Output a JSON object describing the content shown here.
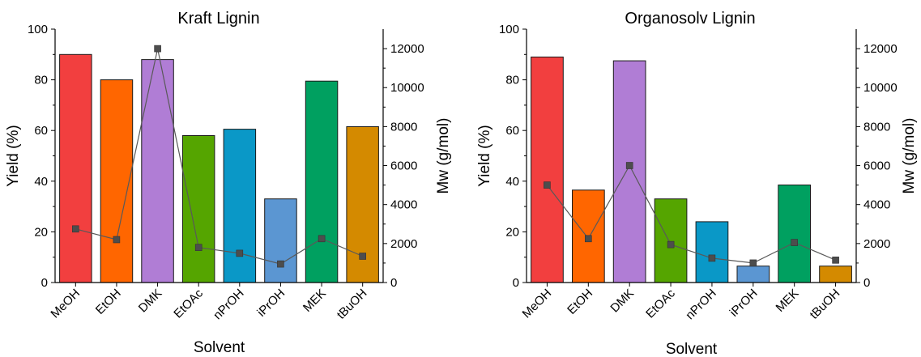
{
  "chart_data": [
    {
      "type": "bar",
      "title": "Kraft Lignin",
      "xlabel": "Solvent",
      "ylabel": "Yield (%)",
      "y2label": "Mw (g/mol)",
      "categories": [
        "MeOH",
        "EtOH",
        "DMK",
        "EtOAc",
        "nPrOH",
        "iPrOH",
        "MEK",
        "tBuOH"
      ],
      "ylim": [
        0,
        100
      ],
      "yticks": [
        "0",
        "20",
        "40",
        "60",
        "80",
        "100"
      ],
      "y2lim": [
        0,
        13000
      ],
      "y2ticks": [
        "0",
        "2000",
        "4000",
        "6000",
        "8000",
        "10000",
        "12000"
      ],
      "series": [
        {
          "type": "bar",
          "values": [
            90,
            80,
            88,
            58,
            60.5,
            33,
            79.5,
            61.5
          ]
        },
        {
          "type": "line",
          "axis": "secondary",
          "values": [
            2750,
            2200,
            12000,
            1800,
            1500,
            950,
            2250,
            1350
          ]
        }
      ],
      "bar_colors": [
        "#f23f3f",
        "#ff6600",
        "#b07dd5",
        "#55a500",
        "#0a98c7",
        "#5b96d2",
        "#00a060",
        "#d48a00"
      ]
    },
    {
      "type": "bar",
      "title": "Organosolv Lignin",
      "xlabel": "Solvent",
      "ylabel": "Yield (%)",
      "y2label": "Mw (g/mol)",
      "categories": [
        "MeOH",
        "EtOH",
        "DMK",
        "EtOAc",
        "nPrOH",
        "iPrOH",
        "MEK",
        "tBuOH"
      ],
      "ylim": [
        0,
        100
      ],
      "yticks": [
        "0",
        "20",
        "40",
        "60",
        "80",
        "100"
      ],
      "y2lim": [
        0,
        13000
      ],
      "y2ticks": [
        "0",
        "2000",
        "4000",
        "6000",
        "8000",
        "10000",
        "12000"
      ],
      "series": [
        {
          "type": "bar",
          "values": [
            89,
            36.5,
            87.5,
            33,
            24,
            6.5,
            38.5,
            6.5
          ]
        },
        {
          "type": "line",
          "axis": "secondary",
          "values": [
            5000,
            2250,
            6000,
            1950,
            1250,
            1000,
            2050,
            1150
          ]
        }
      ],
      "bar_colors": [
        "#f23f3f",
        "#ff6600",
        "#b07dd5",
        "#55a500",
        "#0a98c7",
        "#5b96d2",
        "#00a060",
        "#d48a00"
      ]
    }
  ]
}
